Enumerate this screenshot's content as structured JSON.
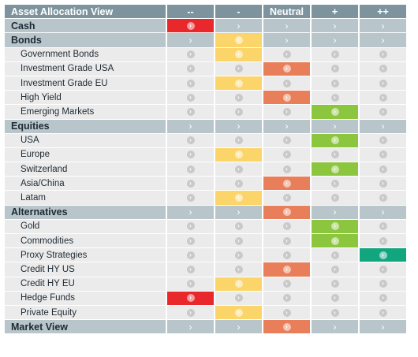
{
  "header": {
    "title": "Asset Allocation View",
    "columns": [
      "--",
      "-",
      "Neutral",
      "+",
      "++"
    ]
  },
  "colors": {
    "header_bg": "#7d949f",
    "category_bg": "#b8c6cc",
    "item_bg": "#ebebeb",
    "very_negative": "#e8282b",
    "negative": "#fbd56a",
    "neutral": "#e97e5b",
    "positive": "#8cc63f",
    "very_positive": "#12a67e"
  },
  "rows": [
    {
      "label": "Cash",
      "type": "category",
      "rating": 0
    },
    {
      "label": "Bonds",
      "type": "category",
      "rating": 1
    },
    {
      "label": "Government Bonds",
      "type": "item",
      "rating": 1
    },
    {
      "label": "Investment Grade USA",
      "type": "item",
      "rating": 2
    },
    {
      "label": "Investment Grade EU",
      "type": "item",
      "rating": 1
    },
    {
      "label": "High Yield",
      "type": "item",
      "rating": 2
    },
    {
      "label": "Emerging Markets",
      "type": "item",
      "rating": 3
    },
    {
      "label": "Equities",
      "type": "category",
      "rating": null
    },
    {
      "label": "USA",
      "type": "item",
      "rating": 3
    },
    {
      "label": "Europe",
      "type": "item",
      "rating": 1
    },
    {
      "label": "Switzerland",
      "type": "item",
      "rating": 3
    },
    {
      "label": "Asia/China",
      "type": "item",
      "rating": 2
    },
    {
      "label": "Latam",
      "type": "item",
      "rating": 1
    },
    {
      "label": "Alternatives",
      "type": "category",
      "rating": 2
    },
    {
      "label": "Gold",
      "type": "item",
      "rating": 3
    },
    {
      "label": "Commodities",
      "type": "item",
      "rating": 3
    },
    {
      "label": "Proxy Strategies",
      "type": "item",
      "rating": 4
    },
    {
      "label": "Credit HY US",
      "type": "item",
      "rating": 2
    },
    {
      "label": "Credit HY EU",
      "type": "item",
      "rating": 1
    },
    {
      "label": "Hedge Funds",
      "type": "item",
      "rating": 0
    },
    {
      "label": "Private Equity",
      "type": "item",
      "rating": 1
    },
    {
      "label": "Market View",
      "type": "category",
      "rating": 2
    }
  ]
}
